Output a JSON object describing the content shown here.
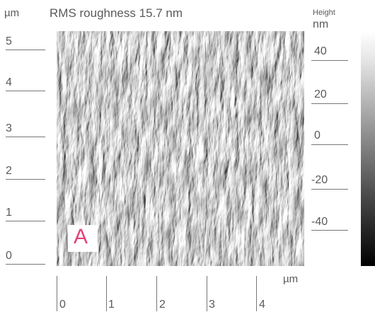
{
  "figure": {
    "title": "RMS roughness 15.7 nm",
    "y_unit": "µm",
    "x_unit": "µm",
    "y_ticks": [
      "5",
      "4",
      "3",
      "2",
      "1",
      "0"
    ],
    "x_ticks": [
      "0",
      "1",
      "2",
      "3",
      "4"
    ],
    "colorbar": {
      "label": "Height",
      "unit": "nm",
      "ticks": [
        "40",
        "20",
        "0",
        "-20",
        "-40"
      ],
      "range_nm": [
        -50,
        50
      ],
      "colors": {
        "top": "#ffffff",
        "bottom": "#000000"
      }
    },
    "panel_label": "A",
    "panel_label_color": "#e8417a"
  }
}
